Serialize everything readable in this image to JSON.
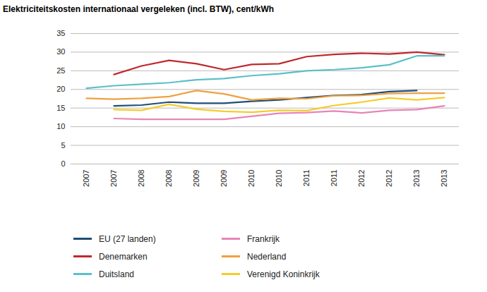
{
  "chart_data": {
    "type": "line",
    "title": "Elektriciteitskosten internationaal vergeleken (incl. BTW), cent/kWh",
    "categories": [
      "2007",
      "2007",
      "2008",
      "2008",
      "2009",
      "2009",
      "2010",
      "2010",
      "2011",
      "2011",
      "2012",
      "2012",
      "2013",
      "2013"
    ],
    "series": [
      {
        "name": "EU (27 landen)",
        "color": "#1f4e79",
        "values": [
          null,
          15.6,
          15.8,
          16.6,
          16.3,
          16.3,
          16.8,
          17.2,
          17.8,
          18.4,
          18.6,
          19.4,
          19.7,
          null
        ]
      },
      {
        "name": "Denemarken",
        "color": "#c0282d",
        "values": [
          null,
          24.0,
          26.3,
          27.8,
          26.9,
          25.3,
          26.7,
          26.9,
          28.8,
          29.4,
          29.7,
          29.5,
          30.0,
          29.3
        ]
      },
      {
        "name": "Duitsland",
        "color": "#5bc0c8",
        "values": [
          20.3,
          21.0,
          21.4,
          21.8,
          22.6,
          22.9,
          23.7,
          24.2,
          25.0,
          25.3,
          25.8,
          26.6,
          29.0,
          29.0
        ]
      },
      {
        "name": "Frankrijk",
        "color": "#e884b8",
        "values": [
          null,
          12.2,
          12.0,
          12.0,
          12.0,
          12.0,
          12.8,
          13.6,
          13.8,
          14.2,
          13.7,
          14.4,
          14.6,
          15.6
        ]
      },
      {
        "name": "Nederland",
        "color": "#f0a040",
        "values": [
          17.6,
          17.4,
          17.6,
          18.1,
          19.7,
          18.8,
          17.2,
          17.6,
          17.5,
          18.3,
          18.4,
          18.9,
          19.0,
          19.0
        ]
      },
      {
        "name": "Verenigd Koninkrijk",
        "color": "#f5cc2a",
        "values": [
          null,
          14.6,
          14.4,
          16.0,
          14.7,
          14.1,
          13.9,
          14.4,
          14.3,
          15.7,
          16.6,
          17.7,
          17.2,
          17.8
        ]
      }
    ],
    "ylim": [
      0,
      35
    ],
    "yticks": [
      0,
      5,
      10,
      15,
      20,
      25,
      30,
      35
    ],
    "grid": true,
    "legend": "bottom"
  }
}
